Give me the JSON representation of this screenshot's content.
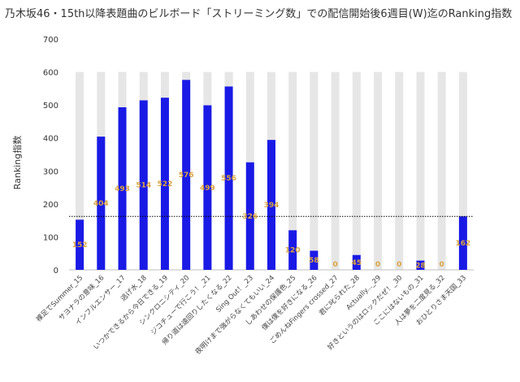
{
  "chart_data": {
    "type": "bar",
    "title": "乃木坂46・15th以降表題曲のビルボード「ストリーミング数」での配信開始後6週目(W)迄のRanking指数",
    "xlabel": "",
    "ylabel": "Ranking指数",
    "ylim": [
      0,
      700
    ],
    "yticks": [
      0,
      100,
      200,
      300,
      400,
      500,
      600,
      700
    ],
    "categories": [
      "裸足でSummer_15",
      "サヨナラの意味_16",
      "インフルエンサー_17",
      "逃げ水_18",
      "いつかできるから今日できる_19",
      "シンクロニシティ_20",
      "ジコチューで行こう！_21",
      "帰り道は遠回りしたくなる_22",
      "Sing Out！_23",
      "夜明けまで強がらなくてもいい_24",
      "しあわせの保護色_25",
      "僕は僕を好きになる_26",
      "ごめんねFingers crossed_27",
      "君に叱られた_28",
      "Actually..._29",
      "好きというのはロックだぜ！_30",
      "ここにはないもの_31",
      "人は夢を二度見る_32",
      "おひとりさま天国_33"
    ],
    "series": [
      {
        "name": "",
        "values": [
          152,
          404,
          493,
          514,
          522,
          576,
          499,
          556,
          326,
          394,
          120,
          58,
          0,
          45,
          0,
          0,
          28,
          0,
          162
        ],
        "color": "#1a1ae6",
        "label_color": "#d9a441"
      }
    ],
    "background_bar_value": 600,
    "background_bar_color": "#e6e6e6",
    "reference_line": 162,
    "grid": false,
    "legend": "none"
  }
}
